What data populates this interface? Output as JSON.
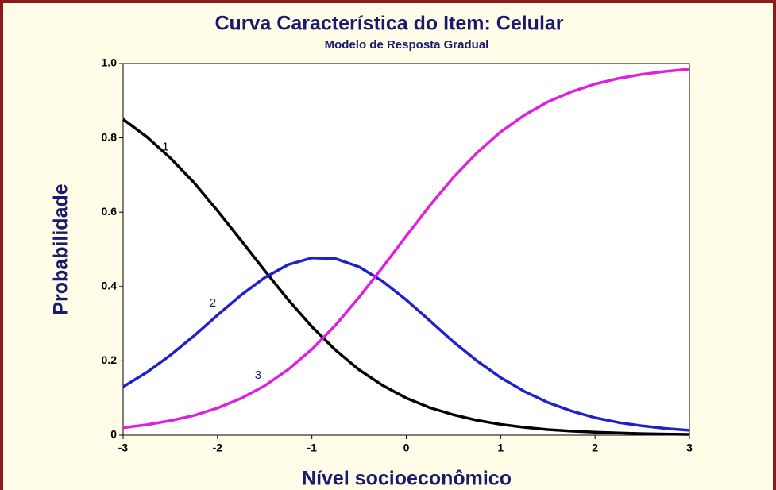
{
  "chart_data": {
    "type": "line",
    "title": "Curva Característica do Item: Celular",
    "subtitle": "Modelo de Resposta Gradual",
    "x_label": "Nível socioeconômico",
    "y_label": "Probabilidade",
    "x": [
      -3,
      -2.75,
      -2.5,
      -2.25,
      -2,
      -1.75,
      -1.5,
      -1.25,
      -1,
      -0.75,
      -0.5,
      -0.25,
      0,
      0.25,
      0.5,
      0.75,
      1,
      1.25,
      1.5,
      1.75,
      2,
      2.25,
      2.5,
      2.75,
      3
    ],
    "series": [
      {
        "name": "1",
        "color": "#000000",
        "values": [
          0.85,
          0.803,
          0.746,
          0.68,
          0.604,
          0.524,
          0.443,
          0.364,
          0.292,
          0.229,
          0.176,
          0.134,
          0.1,
          0.074,
          0.055,
          0.04,
          0.029,
          0.021,
          0.015,
          0.011,
          0.008,
          0.006,
          0.004,
          0.003,
          0.002
        ]
      },
      {
        "name": "2",
        "color": "#2020cc",
        "values": [
          0.13,
          0.169,
          0.215,
          0.267,
          0.323,
          0.377,
          0.424,
          0.459,
          0.477,
          0.475,
          0.453,
          0.414,
          0.364,
          0.308,
          0.251,
          0.2,
          0.155,
          0.118,
          0.088,
          0.065,
          0.047,
          0.034,
          0.025,
          0.018,
          0.013
        ]
      },
      {
        "name": "3",
        "color": "#e020e0",
        "values": [
          0.02,
          0.028,
          0.039,
          0.053,
          0.073,
          0.099,
          0.133,
          0.177,
          0.231,
          0.296,
          0.371,
          0.452,
          0.536,
          0.618,
          0.694,
          0.76,
          0.816,
          0.861,
          0.897,
          0.924,
          0.945,
          0.96,
          0.971,
          0.979,
          0.985
        ]
      }
    ],
    "xlim": [
      -3,
      3
    ],
    "xticks": [
      -3,
      -2,
      -1,
      0,
      1,
      2,
      3
    ],
    "ylim": [
      0,
      1
    ],
    "yticks": [
      0,
      0.2,
      0.4,
      0.6,
      0.8,
      {
        "value": 1,
        "label": "1.0"
      }
    ],
    "grid": false
  }
}
